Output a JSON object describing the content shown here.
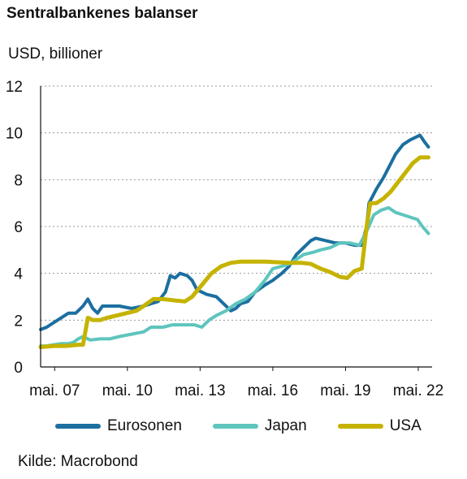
{
  "chart_data": {
    "type": "line",
    "title": "Sentralbankenes balanser",
    "ylabel": "USD, billioner",
    "source": "Kilde: Macrobond",
    "ylim": [
      0,
      12
    ],
    "yticks": [
      0,
      2,
      4,
      6,
      8,
      10,
      12
    ],
    "xlim": [
      2006.75,
      2022.9
    ],
    "xticks": [
      {
        "value": 2007.33,
        "label": "mai. 07"
      },
      {
        "value": 2010.33,
        "label": "mai. 10"
      },
      {
        "value": 2013.33,
        "label": "mai. 13"
      },
      {
        "value": 2016.33,
        "label": "mai. 16"
      },
      {
        "value": 2019.33,
        "label": "mai. 19"
      },
      {
        "value": 2022.33,
        "label": "mai. 22"
      }
    ],
    "grid": "horizontal dotted",
    "legend_position": "bottom",
    "series": [
      {
        "name": "Eurosonen",
        "color": "#1c6fa0",
        "points": [
          [
            2006.75,
            1.6
          ],
          [
            2007.0,
            1.7
          ],
          [
            2007.3,
            1.9
          ],
          [
            2007.6,
            2.1
          ],
          [
            2007.9,
            2.3
          ],
          [
            2008.2,
            2.3
          ],
          [
            2008.5,
            2.6
          ],
          [
            2008.7,
            2.9
          ],
          [
            2008.9,
            2.5
          ],
          [
            2009.1,
            2.3
          ],
          [
            2009.3,
            2.6
          ],
          [
            2009.6,
            2.6
          ],
          [
            2010.0,
            2.6
          ],
          [
            2010.5,
            2.5
          ],
          [
            2011.0,
            2.6
          ],
          [
            2011.3,
            2.7
          ],
          [
            2011.6,
            2.8
          ],
          [
            2011.9,
            3.2
          ],
          [
            2012.1,
            3.9
          ],
          [
            2012.3,
            3.8
          ],
          [
            2012.5,
            4.0
          ],
          [
            2012.8,
            3.9
          ],
          [
            2013.0,
            3.7
          ],
          [
            2013.2,
            3.3
          ],
          [
            2013.6,
            3.1
          ],
          [
            2014.0,
            3.0
          ],
          [
            2014.3,
            2.7
          ],
          [
            2014.6,
            2.4
          ],
          [
            2014.8,
            2.5
          ],
          [
            2015.0,
            2.7
          ],
          [
            2015.3,
            2.8
          ],
          [
            2015.6,
            3.2
          ],
          [
            2016.0,
            3.5
          ],
          [
            2016.33,
            3.7
          ],
          [
            2016.7,
            4.0
          ],
          [
            2017.0,
            4.3
          ],
          [
            2017.3,
            4.8
          ],
          [
            2017.6,
            5.1
          ],
          [
            2017.9,
            5.4
          ],
          [
            2018.1,
            5.5
          ],
          [
            2018.5,
            5.4
          ],
          [
            2018.9,
            5.3
          ],
          [
            2019.3,
            5.3
          ],
          [
            2019.7,
            5.2
          ],
          [
            2020.0,
            5.2
          ],
          [
            2020.2,
            6.0
          ],
          [
            2020.3,
            7.0
          ],
          [
            2020.6,
            7.6
          ],
          [
            2020.9,
            8.1
          ],
          [
            2021.1,
            8.5
          ],
          [
            2021.4,
            9.1
          ],
          [
            2021.7,
            9.5
          ],
          [
            2022.0,
            9.7
          ],
          [
            2022.2,
            9.8
          ],
          [
            2022.4,
            9.9
          ],
          [
            2022.6,
            9.6
          ],
          [
            2022.75,
            9.4
          ]
        ]
      },
      {
        "name": "Japan",
        "color": "#5ec5bd",
        "points": [
          [
            2006.75,
            0.9
          ],
          [
            2007.0,
            0.9
          ],
          [
            2007.3,
            0.95
          ],
          [
            2007.6,
            1.0
          ],
          [
            2007.9,
            1.0
          ],
          [
            2008.1,
            1.05
          ],
          [
            2008.3,
            1.2
          ],
          [
            2008.5,
            1.3
          ],
          [
            2008.8,
            1.15
          ],
          [
            2009.2,
            1.2
          ],
          [
            2009.6,
            1.2
          ],
          [
            2010.0,
            1.3
          ],
          [
            2010.5,
            1.4
          ],
          [
            2011.0,
            1.5
          ],
          [
            2011.3,
            1.7
          ],
          [
            2011.8,
            1.7
          ],
          [
            2012.2,
            1.8
          ],
          [
            2012.7,
            1.8
          ],
          [
            2013.1,
            1.8
          ],
          [
            2013.4,
            1.7
          ],
          [
            2013.7,
            2.0
          ],
          [
            2014.0,
            2.2
          ],
          [
            2014.4,
            2.4
          ],
          [
            2014.8,
            2.7
          ],
          [
            2015.2,
            2.9
          ],
          [
            2015.6,
            3.2
          ],
          [
            2016.0,
            3.7
          ],
          [
            2016.33,
            4.2
          ],
          [
            2016.7,
            4.3
          ],
          [
            2017.0,
            4.4
          ],
          [
            2017.3,
            4.6
          ],
          [
            2017.6,
            4.8
          ],
          [
            2018.0,
            4.9
          ],
          [
            2018.3,
            5.0
          ],
          [
            2018.7,
            5.1
          ],
          [
            2019.1,
            5.3
          ],
          [
            2019.5,
            5.3
          ],
          [
            2019.9,
            5.2
          ],
          [
            2020.2,
            5.8
          ],
          [
            2020.5,
            6.5
          ],
          [
            2020.8,
            6.7
          ],
          [
            2021.1,
            6.8
          ],
          [
            2021.4,
            6.6
          ],
          [
            2021.7,
            6.5
          ],
          [
            2022.0,
            6.4
          ],
          [
            2022.3,
            6.3
          ],
          [
            2022.5,
            6.0
          ],
          [
            2022.75,
            5.7
          ]
        ]
      },
      {
        "name": "USA",
        "color": "#c5b300",
        "points": [
          [
            2006.75,
            0.85
          ],
          [
            2007.3,
            0.9
          ],
          [
            2007.8,
            0.9
          ],
          [
            2008.3,
            0.95
          ],
          [
            2008.5,
            0.95
          ],
          [
            2008.7,
            2.1
          ],
          [
            2008.9,
            2.0
          ],
          [
            2009.2,
            2.0
          ],
          [
            2009.5,
            2.1
          ],
          [
            2009.9,
            2.2
          ],
          [
            2010.3,
            2.3
          ],
          [
            2010.7,
            2.4
          ],
          [
            2011.0,
            2.6
          ],
          [
            2011.4,
            2.9
          ],
          [
            2011.8,
            2.9
          ],
          [
            2012.2,
            2.85
          ],
          [
            2012.7,
            2.8
          ],
          [
            2013.0,
            3.0
          ],
          [
            2013.4,
            3.5
          ],
          [
            2013.8,
            4.0
          ],
          [
            2014.2,
            4.3
          ],
          [
            2014.6,
            4.45
          ],
          [
            2015.0,
            4.5
          ],
          [
            2016.0,
            4.5
          ],
          [
            2017.0,
            4.45
          ],
          [
            2017.5,
            4.45
          ],
          [
            2017.9,
            4.4
          ],
          [
            2018.3,
            4.2
          ],
          [
            2018.7,
            4.05
          ],
          [
            2019.1,
            3.85
          ],
          [
            2019.4,
            3.8
          ],
          [
            2019.7,
            4.1
          ],
          [
            2020.0,
            4.2
          ],
          [
            2020.2,
            6.0
          ],
          [
            2020.35,
            7.0
          ],
          [
            2020.6,
            7.0
          ],
          [
            2020.9,
            7.2
          ],
          [
            2021.2,
            7.5
          ],
          [
            2021.5,
            7.9
          ],
          [
            2021.8,
            8.3
          ],
          [
            2022.1,
            8.7
          ],
          [
            2022.4,
            8.95
          ],
          [
            2022.75,
            8.95
          ]
        ]
      }
    ]
  }
}
